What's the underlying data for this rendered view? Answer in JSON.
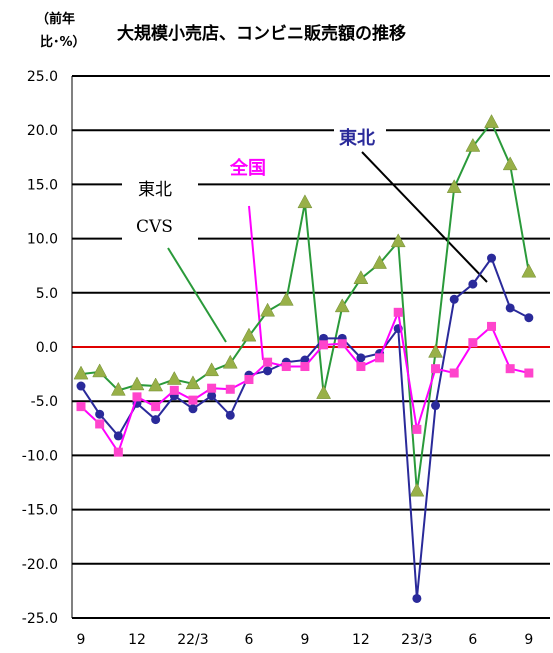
{
  "chart_data": {
    "type": "line",
    "title": "大規模小売店、コンビニ販売額の推移",
    "unit_label_line1": "（前年",
    "unit_label_line2": "比･%）",
    "ylim": [
      -25,
      25
    ],
    "yticks": [
      "25.0",
      "20.0",
      "15.0",
      "10.0",
      "5.0",
      "0.0",
      "-5.0",
      "-10.0",
      "-15.0",
      "-20.0",
      "-25.0"
    ],
    "ytick_values": [
      25,
      20,
      15,
      10,
      5,
      0,
      -5,
      -10,
      -15,
      -20,
      -25
    ],
    "x": [
      0,
      1,
      2,
      3,
      4,
      5,
      6,
      7,
      8,
      9,
      10,
      11,
      12,
      13,
      14,
      15,
      16,
      17,
      18,
      19,
      20,
      21,
      22,
      23,
      24,
      25,
      26,
      27,
      28,
      29,
      30,
      31,
      32,
      33,
      34,
      35,
      36,
      37,
      38,
      39,
      40,
      41,
      42,
      43,
      44,
      45,
      46,
      47
    ],
    "xtick_labels": [
      {
        "x": 0,
        "label": "9"
      },
      {
        "x": 6,
        "label": "12"
      },
      {
        "x": 12,
        "label": "22/3"
      },
      {
        "x": 18,
        "label": "6"
      },
      {
        "x": 24,
        "label": "9"
      },
      {
        "x": 30,
        "label": "12"
      },
      {
        "x": 36,
        "label": "23/3"
      },
      {
        "x": 42,
        "label": "6"
      },
      {
        "x": 48,
        "label": "9"
      }
    ],
    "zero_line_color": "#e00000",
    "grid": true,
    "series": [
      {
        "key": "tohoku_cvs",
        "color": "#2a9a3a",
        "marker": "triangle",
        "marker_color": "#98b048",
        "points": [
          [
            0,
            -2.5
          ],
          [
            2,
            -2.3
          ],
          [
            4,
            -4.0
          ],
          [
            6,
            -3.5
          ],
          [
            8,
            -3.6
          ],
          [
            10,
            -3.0
          ],
          [
            12,
            -3.4
          ],
          [
            14,
            -2.2
          ],
          [
            16,
            -1.5
          ],
          [
            18,
            1.0
          ],
          [
            20,
            3.3
          ],
          [
            22,
            4.3
          ],
          [
            24,
            13.3
          ],
          [
            26,
            -4.3
          ],
          [
            28,
            3.7
          ],
          [
            30,
            6.3
          ],
          [
            32,
            7.7
          ],
          [
            34,
            9.7
          ],
          [
            36,
            -13.3
          ],
          [
            38,
            -0.5
          ],
          [
            40,
            14.7
          ],
          [
            42,
            18.5
          ],
          [
            44,
            20.7
          ],
          [
            46,
            16.8
          ],
          [
            48,
            6.9
          ]
        ]
      },
      {
        "key": "tohoku_dept",
        "color": "#2a2a9a",
        "marker": "circle",
        "marker_color": "#2a2a9a",
        "points": [
          [
            0,
            -3.6
          ],
          [
            2,
            -6.2
          ],
          [
            4,
            -8.2
          ],
          [
            6,
            -5.2
          ],
          [
            8,
            -6.7
          ],
          [
            10,
            -4.5
          ],
          [
            12,
            -5.7
          ],
          [
            14,
            -4.5
          ],
          [
            16,
            -6.3
          ],
          [
            18,
            -2.6
          ],
          [
            20,
            -2.2
          ],
          [
            22,
            -1.4
          ],
          [
            24,
            -1.2
          ],
          [
            26,
            0.8
          ],
          [
            28,
            0.8
          ],
          [
            30,
            -1.0
          ],
          [
            32,
            -0.6
          ],
          [
            34,
            1.7
          ],
          [
            36,
            -23.2
          ],
          [
            38,
            -5.4
          ],
          [
            40,
            4.4
          ],
          [
            42,
            5.8
          ],
          [
            44,
            8.2
          ],
          [
            46,
            3.6
          ],
          [
            48,
            2.7
          ]
        ]
      },
      {
        "key": "national",
        "color": "#ff00ff",
        "marker": "square",
        "marker_color": "#ff44cc",
        "points": [
          [
            0,
            -5.5
          ],
          [
            2,
            -7.1
          ],
          [
            4,
            -9.7
          ],
          [
            6,
            -4.6
          ],
          [
            8,
            -5.5
          ],
          [
            10,
            -4.0
          ],
          [
            12,
            -4.9
          ],
          [
            14,
            -3.8
          ],
          [
            16,
            -3.9
          ],
          [
            18,
            -3.0
          ],
          [
            20,
            -1.4
          ],
          [
            22,
            -1.8
          ],
          [
            24,
            -1.8
          ],
          [
            26,
            0.2
          ],
          [
            28,
            0.3
          ],
          [
            30,
            -1.8
          ],
          [
            32,
            -1.0
          ],
          [
            34,
            3.2
          ],
          [
            36,
            -7.6
          ],
          [
            38,
            -2.0
          ],
          [
            40,
            -2.4
          ],
          [
            42,
            0.4
          ],
          [
            44,
            1.9
          ],
          [
            46,
            -2.0
          ],
          [
            48,
            -2.4
          ]
        ]
      }
    ],
    "annotations": {
      "tohoku_dept_label": "東北",
      "tohoku_dept_color": "#2a2a9a",
      "national_label": "全国",
      "national_color": "#ff00ff",
      "tohoku_cvs_label_line1": "東北",
      "tohoku_cvs_label_line2": "CVS",
      "tohoku_cvs_color": "#000000"
    }
  }
}
